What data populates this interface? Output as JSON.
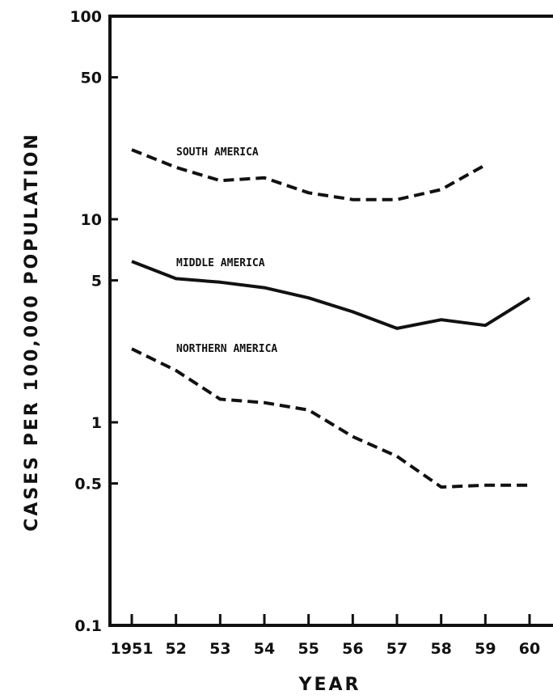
{
  "chart_data": {
    "type": "line",
    "title": "",
    "xlabel": "YEAR",
    "ylabel": "CASES PER 100,000 POPULATION",
    "yscale": "log",
    "ylim": [
      0.1,
      100
    ],
    "yticks": [
      0.1,
      0.5,
      1,
      5,
      10,
      50,
      100
    ],
    "ytick_labels": [
      "0.1",
      "0.5",
      "1",
      "5",
      "10",
      "50",
      "100"
    ],
    "x": [
      1951,
      1952,
      1953,
      1954,
      1955,
      1956,
      1957,
      1958,
      1959,
      1960
    ],
    "xtick_labels": [
      "1951",
      "52",
      "53",
      "54",
      "55",
      "56",
      "57",
      "58",
      "59",
      "60"
    ],
    "grid": false,
    "legend": "none",
    "series": [
      {
        "name": "SOUTH AMERICA",
        "style": "dashed",
        "color": "#111111",
        "values": [
          22,
          18,
          15.5,
          16,
          13.5,
          12.5,
          12.5,
          14,
          18.5,
          null
        ]
      },
      {
        "name": "MIDDLE AMERICA",
        "style": "solid",
        "color": "#111111",
        "values": [
          6.2,
          5.1,
          4.9,
          4.6,
          4.1,
          3.5,
          2.9,
          3.2,
          3.0,
          4.1
        ]
      },
      {
        "name": "NORTHERN AMERICA",
        "style": "dashed",
        "color": "#111111",
        "values": [
          2.3,
          1.8,
          1.3,
          1.25,
          1.15,
          0.85,
          0.68,
          0.48,
          0.49,
          0.49
        ]
      }
    ]
  }
}
